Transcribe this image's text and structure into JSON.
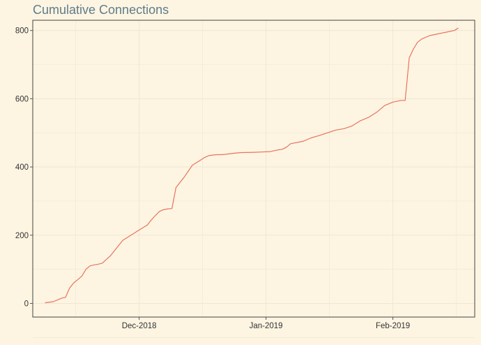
{
  "chart_data": {
    "type": "line",
    "title": "Cumulative Connections",
    "xlabel": "",
    "ylabel": "",
    "x_ticks": [
      {
        "label": "Dec-2018",
        "date": "2018-12-01"
      },
      {
        "label": "Jan-2019",
        "date": "2019-01-01"
      },
      {
        "label": "Feb-2019",
        "date": "2019-02-01"
      }
    ],
    "y_ticks": [
      0,
      200,
      400,
      600,
      800
    ],
    "ylim": [
      -40,
      830
    ],
    "xlim": [
      "2018-11-05",
      "2019-02-21"
    ],
    "grid": true,
    "legend": "none",
    "colors": {
      "background": "#FDF5E2",
      "line": "#E8735F",
      "grid": "#EFE6D3",
      "title": "#5E7C8B",
      "axis_text": "#333333",
      "frame": "#444444"
    },
    "series": [
      {
        "x": [
          "2018-11-08",
          "2018-11-10",
          "2018-11-11",
          "2018-11-12",
          "2018-11-13",
          "2018-11-14",
          "2018-11-15",
          "2018-11-16",
          "2018-11-17",
          "2018-11-18",
          "2018-11-19",
          "2018-11-20",
          "2018-11-21",
          "2018-11-22",
          "2018-11-24",
          "2018-11-26",
          "2018-11-27",
          "2018-11-29",
          "2018-12-01",
          "2018-12-03",
          "2018-12-04",
          "2018-12-05",
          "2018-12-06",
          "2018-12-07",
          "2018-12-08",
          "2018-12-09",
          "2018-12-10",
          "2018-12-12",
          "2018-12-14",
          "2018-12-16",
          "2018-12-17",
          "2018-12-18",
          "2018-12-19",
          "2018-12-20",
          "2018-12-21",
          "2018-12-22",
          "2018-12-24",
          "2018-12-26",
          "2018-12-29",
          "2019-01-02",
          "2019-01-04",
          "2019-01-05",
          "2019-01-06",
          "2019-01-07",
          "2019-01-10",
          "2019-01-12",
          "2019-01-14",
          "2019-01-16",
          "2019-01-18",
          "2019-01-20",
          "2019-01-22",
          "2019-01-24",
          "2019-01-26",
          "2019-01-28",
          "2019-01-30",
          "2019-02-01",
          "2019-02-03",
          "2019-02-04",
          "2019-02-05",
          "2019-02-06",
          "2019-02-07",
          "2019-02-08",
          "2019-02-10",
          "2019-02-12",
          "2019-02-14",
          "2019-02-16",
          "2019-02-17"
        ],
        "y": [
          2,
          5,
          10,
          15,
          18,
          45,
          60,
          70,
          80,
          100,
          110,
          113,
          115,
          118,
          140,
          170,
          185,
          200,
          215,
          230,
          245,
          258,
          270,
          275,
          277,
          278,
          340,
          370,
          405,
          420,
          428,
          433,
          435,
          436,
          436,
          437,
          440,
          442,
          443,
          445,
          450,
          452,
          458,
          468,
          475,
          485,
          492,
          500,
          508,
          512,
          520,
          535,
          545,
          560,
          580,
          590,
          595,
          595,
          720,
          745,
          765,
          775,
          785,
          790,
          795,
          800,
          807
        ]
      }
    ]
  }
}
